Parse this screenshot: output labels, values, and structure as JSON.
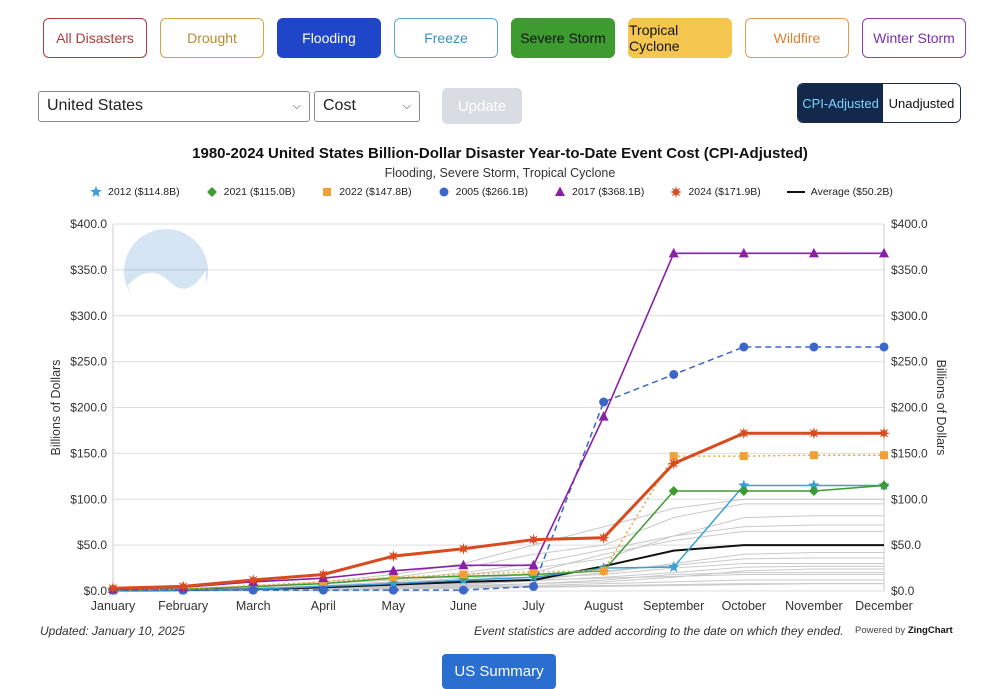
{
  "filters": [
    {
      "label": "All Disasters",
      "border": "#b23a3a",
      "color": "#b23a3a",
      "bg": "#ffffff",
      "width": 104
    },
    {
      "label": "Drought",
      "border": "#d4a545",
      "color": "#b98a2e",
      "bg": "#ffffff",
      "width": 104
    },
    {
      "label": "Flooding",
      "border": "#1f46c8",
      "color": "#ffffff",
      "bg": "#1f46c8",
      "width": 104
    },
    {
      "label": "Freeze",
      "border": "#5aa7d6",
      "color": "#3a8fc2",
      "bg": "#ffffff",
      "width": 104
    },
    {
      "label": "Severe Storm",
      "border": "#3e9b30",
      "color": "#111111",
      "bg": "#3e9b30",
      "width": 104
    },
    {
      "label": "Tropical Cyclone",
      "border": "#f5c64f",
      "color": "#111111",
      "bg": "#f5c64f",
      "width": 104
    },
    {
      "label": "Wildfire",
      "border": "#e89a4e",
      "color": "#d9823a",
      "bg": "#ffffff",
      "width": 104
    },
    {
      "label": "Winter Storm",
      "border": "#8a3fb5",
      "color": "#7a2fa8",
      "bg": "#ffffff",
      "width": 104
    }
  ],
  "controls": {
    "region": "United States",
    "metric": "Cost",
    "update_label": "Update"
  },
  "toggle": {
    "active": "CPI-Adjusted",
    "inactive": "Unadjusted"
  },
  "chart_data": {
    "type": "line",
    "title": "1980-2024 United States Billion-Dollar Disaster Year-to-Date Event Cost (CPI-Adjusted)",
    "subtitle": "Flooding, Severe Storm, Tropical Cyclone",
    "ylabel": "Billions of Dollars",
    "ylim": [
      0,
      400
    ],
    "yticks": [
      "$0.0",
      "$50.0",
      "$100.0",
      "$150.0",
      "$200.0",
      "$250.0",
      "$300.0",
      "$350.0",
      "$400.0"
    ],
    "categories": [
      "January",
      "February",
      "March",
      "April",
      "May",
      "June",
      "July",
      "August",
      "September",
      "October",
      "November",
      "December"
    ],
    "series": [
      {
        "name": "2012 ($114.8B)",
        "color": "#3a9fd6",
        "marker": "star",
        "dash": "solid",
        "width": 1.5,
        "values": [
          0.5,
          1,
          2,
          5,
          8,
          12,
          15,
          25,
          26,
          115,
          115,
          115
        ]
      },
      {
        "name": "2021 ($115.0B)",
        "color": "#3e9b30",
        "marker": "diamond",
        "dash": "solid",
        "width": 1.5,
        "values": [
          1,
          2,
          5,
          8,
          14,
          16,
          18,
          22,
          109,
          109,
          109,
          115
        ]
      },
      {
        "name": "2022 ($147.8B)",
        "color": "#f0a035",
        "marker": "square",
        "dash": "dotted",
        "width": 1.5,
        "values": [
          1,
          2,
          6,
          10,
          15,
          18,
          21,
          22,
          147,
          147,
          148,
          148
        ]
      },
      {
        "name": "2005 ($266.1B)",
        "color": "#3a67c9",
        "marker": "circle",
        "dash": "dashed",
        "width": 1.5,
        "values": [
          1,
          1,
          1,
          1,
          1,
          1,
          5,
          206,
          236,
          266,
          266,
          266
        ]
      },
      {
        "name": "2017 ($368.1B)",
        "color": "#8a1fa8",
        "marker": "triangle",
        "dash": "solid",
        "width": 1.6,
        "values": [
          2,
          4,
          10,
          14,
          22,
          28,
          28,
          190,
          368,
          368,
          368,
          368
        ]
      },
      {
        "name": "2024 ($171.9B)",
        "color": "#d94a1e",
        "marker": "burst",
        "dash": "solid",
        "width": 3,
        "values": [
          3,
          5,
          12,
          18,
          38,
          46,
          56,
          58,
          139,
          172,
          172,
          172
        ]
      },
      {
        "name": "Average ($50.2B)",
        "color": "#111111",
        "marker": "none",
        "dash": "solid",
        "width": 2,
        "values": [
          0.5,
          1,
          2,
          4,
          7,
          10,
          12,
          27,
          44,
          50,
          50,
          50
        ]
      }
    ],
    "background_years": [
      [
        0,
        1,
        2,
        3,
        4,
        5,
        6,
        8,
        10,
        12,
        12,
        12
      ],
      [
        0,
        0,
        1,
        2,
        3,
        4,
        5,
        6,
        7,
        8,
        8,
        8
      ],
      [
        1,
        2,
        3,
        5,
        8,
        12,
        15,
        18,
        25,
        30,
        30,
        30
      ],
      [
        0,
        1,
        2,
        3,
        5,
        8,
        12,
        20,
        30,
        40,
        42,
        42
      ],
      [
        0,
        1,
        3,
        6,
        10,
        18,
        25,
        35,
        60,
        70,
        72,
        72
      ],
      [
        0,
        0,
        1,
        2,
        3,
        5,
        8,
        10,
        15,
        22,
        24,
        24
      ],
      [
        0,
        2,
        4,
        8,
        15,
        25,
        40,
        50,
        80,
        95,
        95,
        95
      ],
      [
        1,
        2,
        4,
        8,
        12,
        20,
        30,
        45,
        60,
        80,
        82,
        82
      ],
      [
        0,
        1,
        1,
        2,
        4,
        6,
        8,
        12,
        18,
        20,
        20,
        20
      ],
      [
        0,
        1,
        3,
        5,
        9,
        14,
        18,
        22,
        28,
        35,
        36,
        36
      ],
      [
        0,
        0,
        1,
        1,
        2,
        3,
        4,
        5,
        6,
        7,
        8,
        8
      ],
      [
        1,
        2,
        5,
        10,
        18,
        30,
        50,
        70,
        90,
        100,
        100,
        100
      ],
      [
        0,
        1,
        2,
        4,
        6,
        9,
        12,
        14,
        16,
        18,
        18,
        18
      ],
      [
        0,
        1,
        2,
        3,
        6,
        10,
        20,
        40,
        55,
        65,
        65,
        65
      ],
      [
        0,
        0,
        1,
        2,
        4,
        7,
        11,
        15,
        20,
        26,
        27,
        27
      ]
    ],
    "legend_position": "top",
    "grid": true
  },
  "footer": {
    "updated": "Updated: January 10, 2025",
    "note": "Event statistics are added according to the date on which they ended.",
    "powered_by": "Powered by",
    "powered_brand": "ZingChart",
    "summary_button": "US Summary"
  }
}
